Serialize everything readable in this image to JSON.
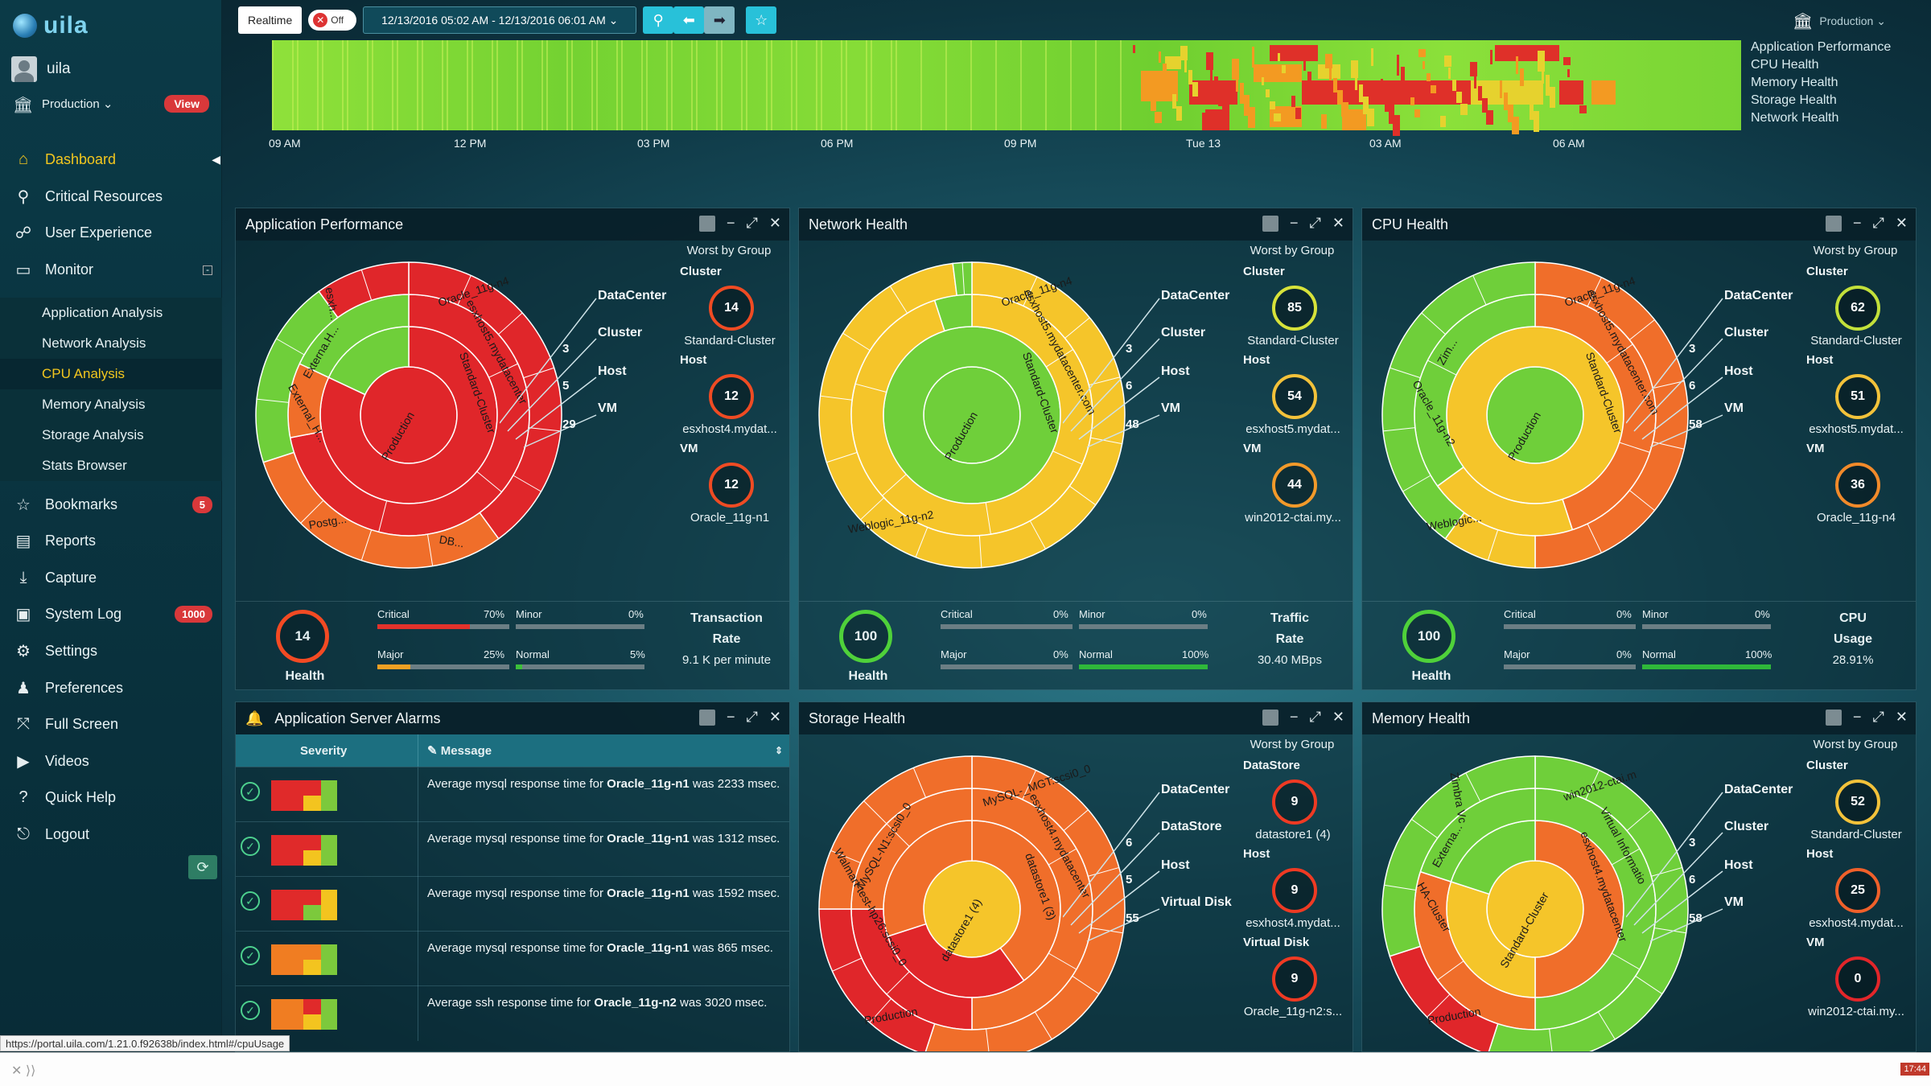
{
  "app": {
    "logo_text": "uila",
    "user": "uila",
    "environment": "Production ⌄",
    "view_label": "View"
  },
  "nav": {
    "items": [
      {
        "label": "Dashboard",
        "icon": "home-icon"
      },
      {
        "label": "Critical Resources",
        "icon": "pin-icon"
      },
      {
        "label": "User Experience",
        "icon": "org-icon"
      },
      {
        "label": "Monitor",
        "icon": "monitor-icon"
      }
    ],
    "sub_items": [
      "Application Analysis",
      "Network Analysis",
      "CPU Analysis",
      "Memory Analysis",
      "Storage Analysis",
      "Stats Browser"
    ],
    "items2": [
      {
        "label": "Bookmarks",
        "badge": "5"
      },
      {
        "label": "Reports"
      },
      {
        "label": "Capture"
      },
      {
        "label": "System Log",
        "badge": "1000"
      },
      {
        "label": "Settings"
      },
      {
        "label": "Preferences"
      },
      {
        "label": "Full Screen"
      },
      {
        "label": "Videos"
      },
      {
        "label": "Quick Help"
      },
      {
        "label": "Logout"
      }
    ]
  },
  "topbar": {
    "realtime": "Realtime",
    "toggle": "Off",
    "range": "12/13/2016 05:02 AM - 12/13/2016 06:01 AM ⌄",
    "env": "Production ⌄"
  },
  "timeline": {
    "ticks": [
      "09 AM",
      "12 PM",
      "03 PM",
      "06 PM",
      "09 PM",
      "Tue 13",
      "03 AM",
      "06 AM"
    ],
    "legend": [
      "Application Performance",
      "CPU Health",
      "Memory Health",
      "Storage Health",
      "Network Health"
    ]
  },
  "panels": {
    "app": {
      "title": "Application Performance",
      "legend": [
        "DataCenter",
        "Cluster",
        "Host",
        "VM"
      ],
      "counts": [
        "3",
        "5",
        "29"
      ],
      "worst_title": "Worst by Group",
      "groups": [
        {
          "label": "Cluster",
          "value": "14",
          "name": "Standard-Cluster"
        },
        {
          "label": "Host",
          "value": "12",
          "name": "esxhost4.mydat..."
        },
        {
          "label": "VM",
          "value": "12",
          "name": "Oracle_11g-n1"
        }
      ],
      "health": {
        "value": "14",
        "label": "Health"
      },
      "stats": {
        "critical": "Critical",
        "critical_pct": "70%",
        "minor": "Minor",
        "minor_pct": "0%",
        "major": "Major",
        "major_pct": "25%",
        "normal": "Normal",
        "normal_pct": "5%"
      },
      "metric": {
        "title": "Transaction",
        "title2": "Rate",
        "value": "9.1 K per minute"
      }
    },
    "net": {
      "title": "Network Health",
      "legend": [
        "DataCenter",
        "Cluster",
        "Host",
        "VM"
      ],
      "counts": [
        "3",
        "6",
        "48"
      ],
      "worst_title": "Worst by Group",
      "groups": [
        {
          "label": "Cluster",
          "value": "85",
          "name": "Standard-Cluster"
        },
        {
          "label": "Host",
          "value": "54",
          "name": "esxhost5.mydat..."
        },
        {
          "label": "VM",
          "value": "44",
          "name": "win2012-ctai.my..."
        }
      ],
      "health": {
        "value": "100",
        "label": "Health"
      },
      "stats": {
        "critical": "Critical",
        "critical_pct": "0%",
        "minor": "Minor",
        "minor_pct": "0%",
        "major": "Major",
        "major_pct": "0%",
        "normal": "Normal",
        "normal_pct": "100%"
      },
      "metric": {
        "title": "Traffic",
        "title2": "Rate",
        "value": "30.40 MBps"
      }
    },
    "cpu": {
      "title": "CPU Health",
      "legend": [
        "DataCenter",
        "Cluster",
        "Host",
        "VM"
      ],
      "counts": [
        "3",
        "6",
        "58"
      ],
      "worst_title": "Worst by Group",
      "groups": [
        {
          "label": "Cluster",
          "value": "62",
          "name": "Standard-Cluster"
        },
        {
          "label": "Host",
          "value": "51",
          "name": "esxhost5.mydat..."
        },
        {
          "label": "VM",
          "value": "36",
          "name": "Oracle_11g-n4"
        }
      ],
      "health": {
        "value": "100",
        "label": "Health"
      },
      "stats": {
        "critical": "Critical",
        "critical_pct": "0%",
        "minor": "Minor",
        "minor_pct": "0%",
        "major": "Major",
        "major_pct": "0%",
        "normal": "Normal",
        "normal_pct": "100%"
      },
      "metric": {
        "title": "CPU",
        "title2": "Usage",
        "value": "28.91%"
      }
    },
    "alarms": {
      "title": "Application Server Alarms",
      "col_severity": "Severity",
      "col_message": "Message",
      "rows": [
        {
          "pre": "Average mysql response time for ",
          "bold": "Oracle_11g-n1",
          "post": " was 2233 msec."
        },
        {
          "pre": "Average mysql response time for ",
          "bold": "Oracle_11g-n1",
          "post": " was 1312 msec."
        },
        {
          "pre": "Average mysql response time for ",
          "bold": "Oracle_11g-n1",
          "post": " was 1592 msec."
        },
        {
          "pre": "Average mysql response time for ",
          "bold": "Oracle_11g-n1",
          "post": " was 865 msec."
        },
        {
          "pre": "Average ssh response time for ",
          "bold": "Oracle_11g-n2",
          "post": " was 3020 msec."
        }
      ]
    },
    "storage": {
      "title": "Storage Health",
      "legend": [
        "DataCenter",
        "DataStore",
        "Host",
        "Virtual Disk"
      ],
      "counts": [
        "6",
        "5",
        "55"
      ],
      "worst_title": "Worst by Group",
      "groups": [
        {
          "label": "DataStore",
          "value": "9",
          "name": "datastore1 (4)"
        },
        {
          "label": "Host",
          "value": "9",
          "name": "esxhost4.mydat..."
        },
        {
          "label": "Virtual Disk",
          "value": "9",
          "name": "Oracle_11g-n2:s..."
        }
      ]
    },
    "memory": {
      "title": "Memory Health",
      "legend": [
        "DataCenter",
        "Cluster",
        "Host",
        "VM"
      ],
      "counts": [
        "3",
        "6",
        "58"
      ],
      "worst_title": "Worst by Group",
      "groups": [
        {
          "label": "Cluster",
          "value": "52",
          "name": "Standard-Cluster"
        },
        {
          "label": "Host",
          "value": "25",
          "name": "esxhost4.mydat..."
        },
        {
          "label": "VM",
          "value": "0",
          "name": "win2012-ctai.my..."
        }
      ]
    }
  },
  "sunburst_labels": {
    "app": [
      "Oracle_11g-n4",
      "esxhost5.mydatacenter",
      "Standard-Cluster",
      "Production",
      "Postg...",
      "External_H...",
      "Externa.H...",
      "esxh...",
      "DB..."
    ],
    "net": [
      "Oracle_11g-n4",
      "esxhost5.mydatacenter.com",
      "Standard-Cluster",
      "Production",
      "Weblogic_11g-n2"
    ],
    "cpu": [
      "Oracle_11g-n4",
      "esxhost5.mydatacenter.com",
      "Standard-Cluster",
      "Production",
      "Weblogic...",
      "Oracle_11g-n2",
      "Zim..."
    ],
    "storage": [
      "MySQL-_MGT:scsi0_0",
      "esxhost4.mydatacenter",
      "datastore1 (3)",
      "datastore1 (4)",
      "Production",
      "Walmart-test-hp26:scsi0_0",
      "MySQL-N1:scsi0_0"
    ],
    "memory": [
      "win2012-ctai.m",
      "Virtual Informatio",
      "esxhost4.mydatacenter",
      "Standard-Cluster",
      "Production",
      "HA-Cluster",
      "Externa...",
      "Zimbra Vc"
    ]
  },
  "status_url": "https://portal.uila.com/1.21.0.f92638b/index.html#/cpuUsage",
  "corner_tag": "17:44"
}
